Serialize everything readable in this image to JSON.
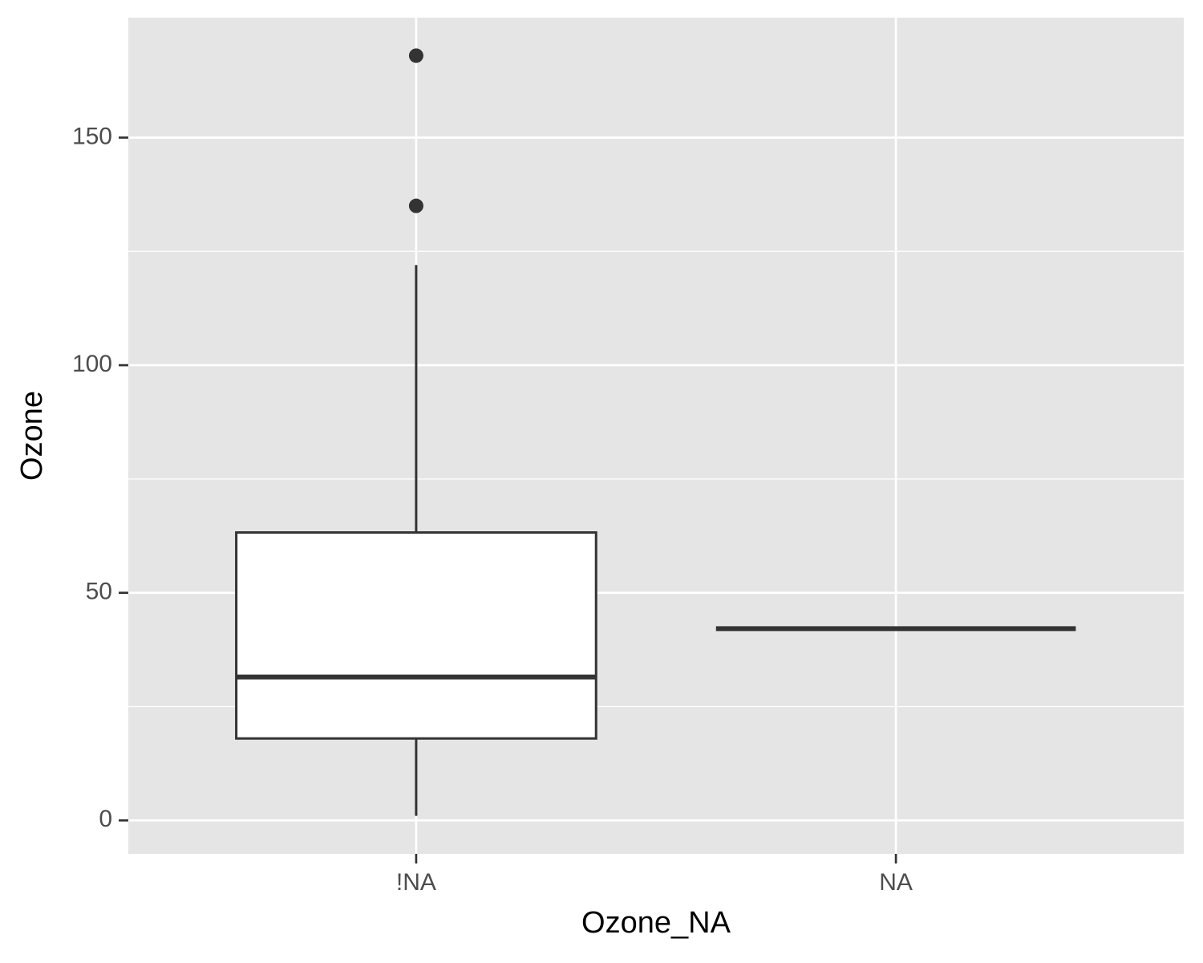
{
  "chart_data": {
    "type": "box",
    "x_label": "Ozone_NA",
    "y_label": "Ozone",
    "categories": [
      "!NA",
      "NA"
    ],
    "boxes": [
      {
        "min": 1,
        "q1": 18,
        "median": 31.5,
        "q3": 63.25,
        "max": 122,
        "outliers": [
          135,
          168
        ]
      },
      {
        "min": 42.13,
        "q1": 42.13,
        "median": 42.13,
        "q3": 42.13,
        "max": 42.13,
        "outliers": []
      }
    ],
    "box_fill": "#ffffff",
    "box_line": "#333333",
    "panel_color": "#e5e5e5",
    "ylim": [
      -7.35,
      176.35
    ],
    "yticks": [
      0,
      50,
      100,
      150
    ],
    "y_minor_ticks": [
      25,
      75,
      125
    ],
    "grid": true
  }
}
